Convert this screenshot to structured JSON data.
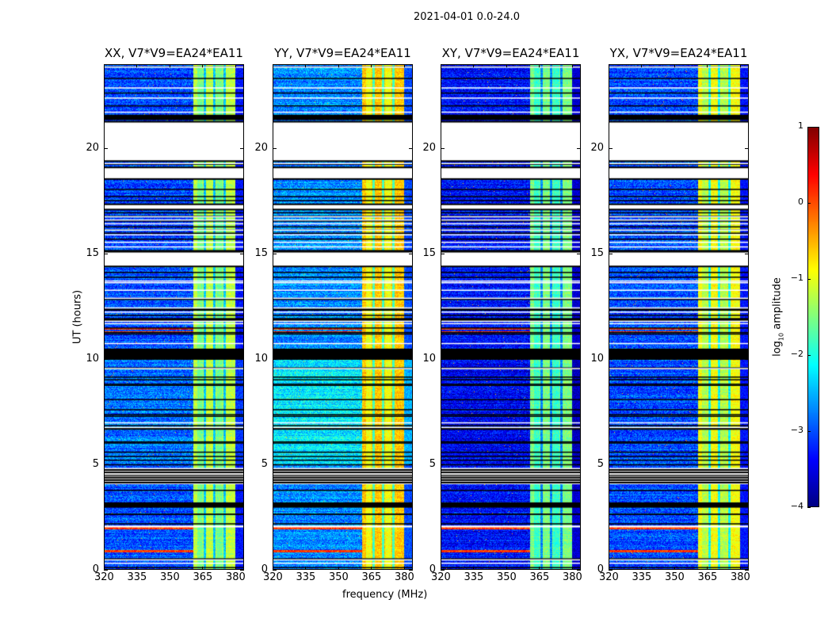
{
  "figure": {
    "suptitle": "2021-04-01 0.0-24.0"
  },
  "chart_data": {
    "type": "heatmap",
    "title": "2021-04-01 0.0-24.0",
    "xlabel": "frequency (MHz)",
    "ylabel": "UT (hours)",
    "xlim": [
      320,
      384
    ],
    "ylim": [
      0,
      24
    ],
    "xticks": [
      "320",
      "335",
      "350",
      "365",
      "380"
    ],
    "xtick_values": [
      320,
      335,
      350,
      365,
      380
    ],
    "yticks": [
      "0",
      "5",
      "10",
      "15",
      "20"
    ],
    "ytick_values": [
      0,
      5,
      10,
      15,
      20
    ],
    "colorbar": {
      "label": "log10 amplitude",
      "label_main": "log",
      "label_sub": "10",
      "label_rest": " amplitude",
      "range": [
        -4,
        1
      ],
      "ticks": [
        "1",
        "0",
        "−1",
        "−2",
        "−3",
        "−4"
      ],
      "tick_values": [
        1,
        0,
        -1,
        -2,
        -3,
        -4
      ],
      "colormap": "jet"
    },
    "frequency_structure": {
      "band_MHz": [
        360.5,
        380
      ],
      "band_dips_MHz": [
        366,
        370.3,
        375
      ],
      "edge_MHz": [
        380,
        384
      ]
    },
    "flags": {
      "no_data_hours": [
        [
          19.4,
          21.27
        ],
        [
          18.55,
          19.1
        ],
        [
          17.1,
          17.35
        ],
        [
          14.4,
          15.1
        ]
      ],
      "flagged_hours": [
        [
          21.35,
          21.6
        ],
        [
          10.0,
          10.5
        ],
        [
          4.1,
          4.8
        ],
        [
          2.95,
          3.2
        ],
        [
          11.8,
          11.95
        ],
        [
          12.3,
          12.4
        ]
      ],
      "rfi_hours": [
        11.3,
        11.45,
        2.0,
        0.9
      ]
    },
    "panels": [
      {
        "title": "XX, V7*V9=EA24*EA11",
        "base_log_amp": -3.0,
        "mid_day_log_amp": -2.8,
        "band_log_amp": -1.2
      },
      {
        "title": "YY, V7*V9=EA24*EA11",
        "base_log_amp": -2.7,
        "mid_day_log_amp": -2.2,
        "band_log_amp": -0.6
      },
      {
        "title": "XY, V7*V9=EA24*EA11",
        "base_log_amp": -3.3,
        "mid_day_log_amp": -3.4,
        "band_log_amp": -1.5
      },
      {
        "title": "YX, V7*V9=EA24*EA11",
        "base_log_amp": -3.0,
        "mid_day_log_amp": -3.0,
        "band_log_amp": -0.9
      }
    ]
  }
}
